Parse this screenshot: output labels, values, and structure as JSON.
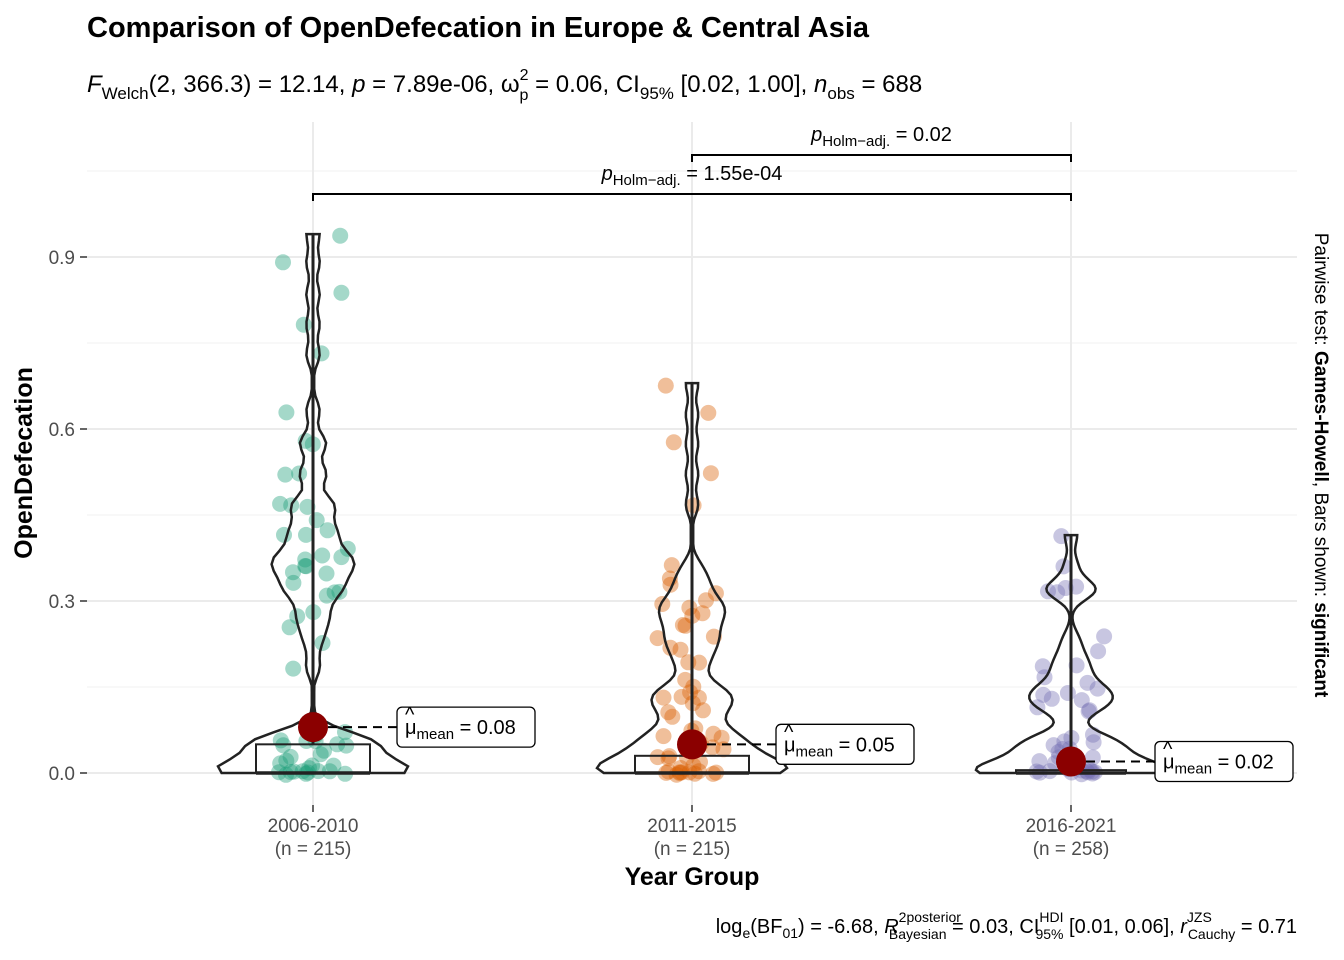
{
  "chart_data": {
    "type": "violin-box-scatter",
    "title": "Comparison of OpenDefecation in Europe & Central Asia",
    "subtitle": {
      "f_label": "F",
      "f_sub": "Welch",
      "f_args": "(2, 366.3)",
      "f_value": " = 12.14, ",
      "p_label": "p",
      "p_value": " = 7.89e-06, ",
      "omega_label": "ω",
      "omega_sup": "2",
      "omega_sub": "p",
      "omega_value": " = 0.06, CI",
      "ci_sub": "95%",
      "ci_value": " [0.02, 1.00], ",
      "n_label": "n",
      "n_sub": "obs",
      "n_value": " = 688"
    },
    "xlabel": "Year Group",
    "ylabel": "OpenDefecation",
    "ylim": [
      -0.055,
      1.13
    ],
    "yticks": [
      0.0,
      0.3,
      0.6,
      0.9
    ],
    "ytick_labels": [
      "0.0",
      "0.3",
      "0.6",
      "0.9"
    ],
    "grid": true,
    "categories": [
      "2006-2010",
      "2011-2015",
      "2016-2021"
    ],
    "category_n": [
      "(n = 215)",
      "(n = 215)",
      "(n = 258)"
    ],
    "colors": [
      "#1b9e77",
      "#d95f02",
      "#7570b3"
    ],
    "mean_color": "#8b0000",
    "means": [
      0.08,
      0.05,
      0.02
    ],
    "mean_labels": [
      {
        "label": "μ",
        "sub": "mean",
        "value": " = 0.08"
      },
      {
        "label": "μ",
        "sub": "mean",
        "value": " = 0.05"
      },
      {
        "label": "μ",
        "sub": "mean",
        "value": " = 0.02"
      }
    ],
    "boxes": [
      {
        "q1": 0.0,
        "median": 0.0,
        "q3": 0.05,
        "whisker_high": 0.94
      },
      {
        "q1": 0.0,
        "median": 0.0,
        "q3": 0.03,
        "whisker_high": 0.68
      },
      {
        "q1": 0.0,
        "median": 0.0,
        "q3": 0.005,
        "whisker_high": 0.415
      }
    ],
    "points": [
      [
        0.94,
        0.89,
        0.835,
        0.782,
        0.73,
        0.632,
        0.577,
        0.572,
        0.522,
        0.521,
        0.472,
        0.469,
        0.462,
        0.44,
        0.424,
        0.413,
        0.412,
        0.39,
        0.38,
        0.375,
        0.372,
        0.363,
        0.36,
        0.348,
        0.345,
        0.333,
        0.318,
        0.318,
        0.31,
        0.284,
        0.272,
        0.253,
        0.228,
        0.185,
        0.07,
        0.065,
        0.06,
        0.058,
        0.055,
        0.05,
        0.048,
        0.045,
        0.04,
        0.035,
        0.03,
        0.025,
        0.02,
        0.015,
        0.01,
        0.005,
        0.002,
        0.0,
        0.0,
        0.0,
        0.0,
        0.0,
        0.0,
        0.0,
        0.0,
        0.0
      ],
      [
        0.678,
        0.625,
        0.574,
        0.521,
        0.468,
        0.362,
        0.34,
        0.33,
        0.312,
        0.3,
        0.295,
        0.285,
        0.28,
        0.274,
        0.26,
        0.255,
        0.24,
        0.235,
        0.22,
        0.218,
        0.195,
        0.19,
        0.16,
        0.15,
        0.14,
        0.135,
        0.132,
        0.128,
        0.12,
        0.11,
        0.105,
        0.1,
        0.08,
        0.075,
        0.07,
        0.065,
        0.06,
        0.055,
        0.05,
        0.045,
        0.04,
        0.035,
        0.03,
        0.03,
        0.028,
        0.025,
        0.02,
        0.015,
        0.01,
        0.005,
        0.0,
        0.0,
        0.0,
        0.0,
        0.0,
        0.0,
        0.0,
        0.0,
        0.0,
        0.0
      ],
      [
        0.415,
        0.362,
        0.322,
        0.32,
        0.32,
        0.318,
        0.235,
        0.21,
        0.19,
        0.185,
        0.165,
        0.155,
        0.145,
        0.14,
        0.135,
        0.13,
        0.13,
        0.115,
        0.11,
        0.11,
        0.065,
        0.06,
        0.058,
        0.055,
        0.05,
        0.045,
        0.04,
        0.035,
        0.03,
        0.025,
        0.02,
        0.015,
        0.01,
        0.005,
        0.002,
        0.0,
        0.0,
        0.0,
        0.0,
        0.0,
        0.0,
        0.0,
        0.0,
        0.0,
        0.0
      ]
    ],
    "pairwise": [
      {
        "from": 1,
        "to": 2,
        "label": "p",
        "sub": "Holm−adj.",
        "value": " = 0.02"
      },
      {
        "from": 0,
        "to": 2,
        "label": "p",
        "sub": "Holm−adj.",
        "value": " = 1.55e-04"
      }
    ],
    "caption": {
      "t1": "log",
      "t1_sub": "e",
      "t2": "(BF",
      "t2_sub": "01",
      "t3": ") = -6.68, ",
      "r_label": "R",
      "r_sup": "2",
      "r_sup2": "posterior",
      "r_sub": "Bayesian",
      "t4": " = 0.03, CI",
      "ci_sup": "HDI",
      "ci_sub": "95%",
      "t5": " [0.01, 0.06], ",
      "rc_label": "r",
      "rc_sup": "JZS",
      "rc_sub": "Cauchy",
      "t6": " = 0.71"
    },
    "side_caption": {
      "prefix": "Pairwise test: ",
      "test": "Games-Howell",
      "middle": ", Bars shown: ",
      "shown": "significant"
    }
  }
}
